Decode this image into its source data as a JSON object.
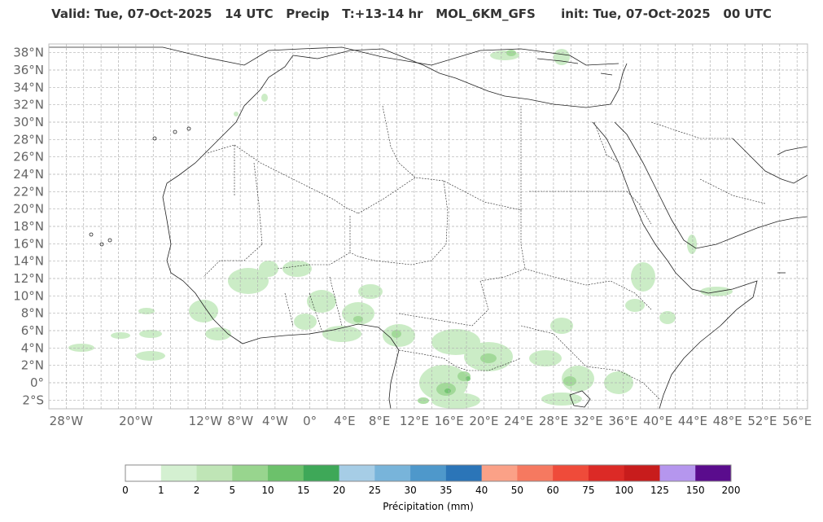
{
  "title": "Valid: Tue, 07-Oct-2025   14 UTC   Precip   T:+13-14 hr   MOL_6KM_GFS      init: Tue, 07-Oct-2025   00 UTC",
  "map": {
    "lat_labels": [
      "38°N",
      "36°N",
      "34°N",
      "32°N",
      "30°N",
      "28°N",
      "26°N",
      "24°N",
      "22°N",
      "20°N",
      "18°N",
      "16°N",
      "14°N",
      "12°N",
      "10°N",
      "8°N",
      "6°N",
      "4°N",
      "2°N",
      "0°",
      "2°S"
    ],
    "lat_values": [
      38,
      36,
      34,
      32,
      30,
      28,
      26,
      24,
      22,
      20,
      18,
      16,
      14,
      12,
      10,
      8,
      6,
      4,
      2,
      0,
      -2
    ],
    "lon_labels": [
      "28°W",
      "20°W",
      "12°W",
      "8°W",
      "4°W",
      "0°",
      "4°E",
      "8°E",
      "12°E",
      "16°E",
      "20°E",
      "24°E",
      "28°E",
      "32°E",
      "36°E",
      "40°E",
      "44°E",
      "48°E",
      "52°E",
      "56°E"
    ],
    "lon_values": [
      -28,
      -20,
      -12,
      -8,
      -4,
      0,
      4,
      8,
      12,
      16,
      20,
      24,
      28,
      32,
      36,
      40,
      44,
      48,
      52,
      56
    ]
  },
  "colorbar": {
    "ticks": [
      "0",
      "1",
      "2",
      "5",
      "10",
      "15",
      "20",
      "25",
      "30",
      "35",
      "40",
      "50",
      "60",
      "75",
      "100",
      "125",
      "150",
      "200"
    ],
    "colors": [
      "#ffffff",
      "#d4f0d1",
      "#bfe5b6",
      "#98d58e",
      "#6cc16b",
      "#3ea858",
      "#a6cde6",
      "#78b4da",
      "#4e98cb",
      "#2b75b8",
      "#fba187",
      "#f67960",
      "#ef4b3a",
      "#dc2a26",
      "#c81c1c",
      "#b596ee",
      "#5a0c8d"
    ],
    "label": "Précipitation (mm)"
  }
}
